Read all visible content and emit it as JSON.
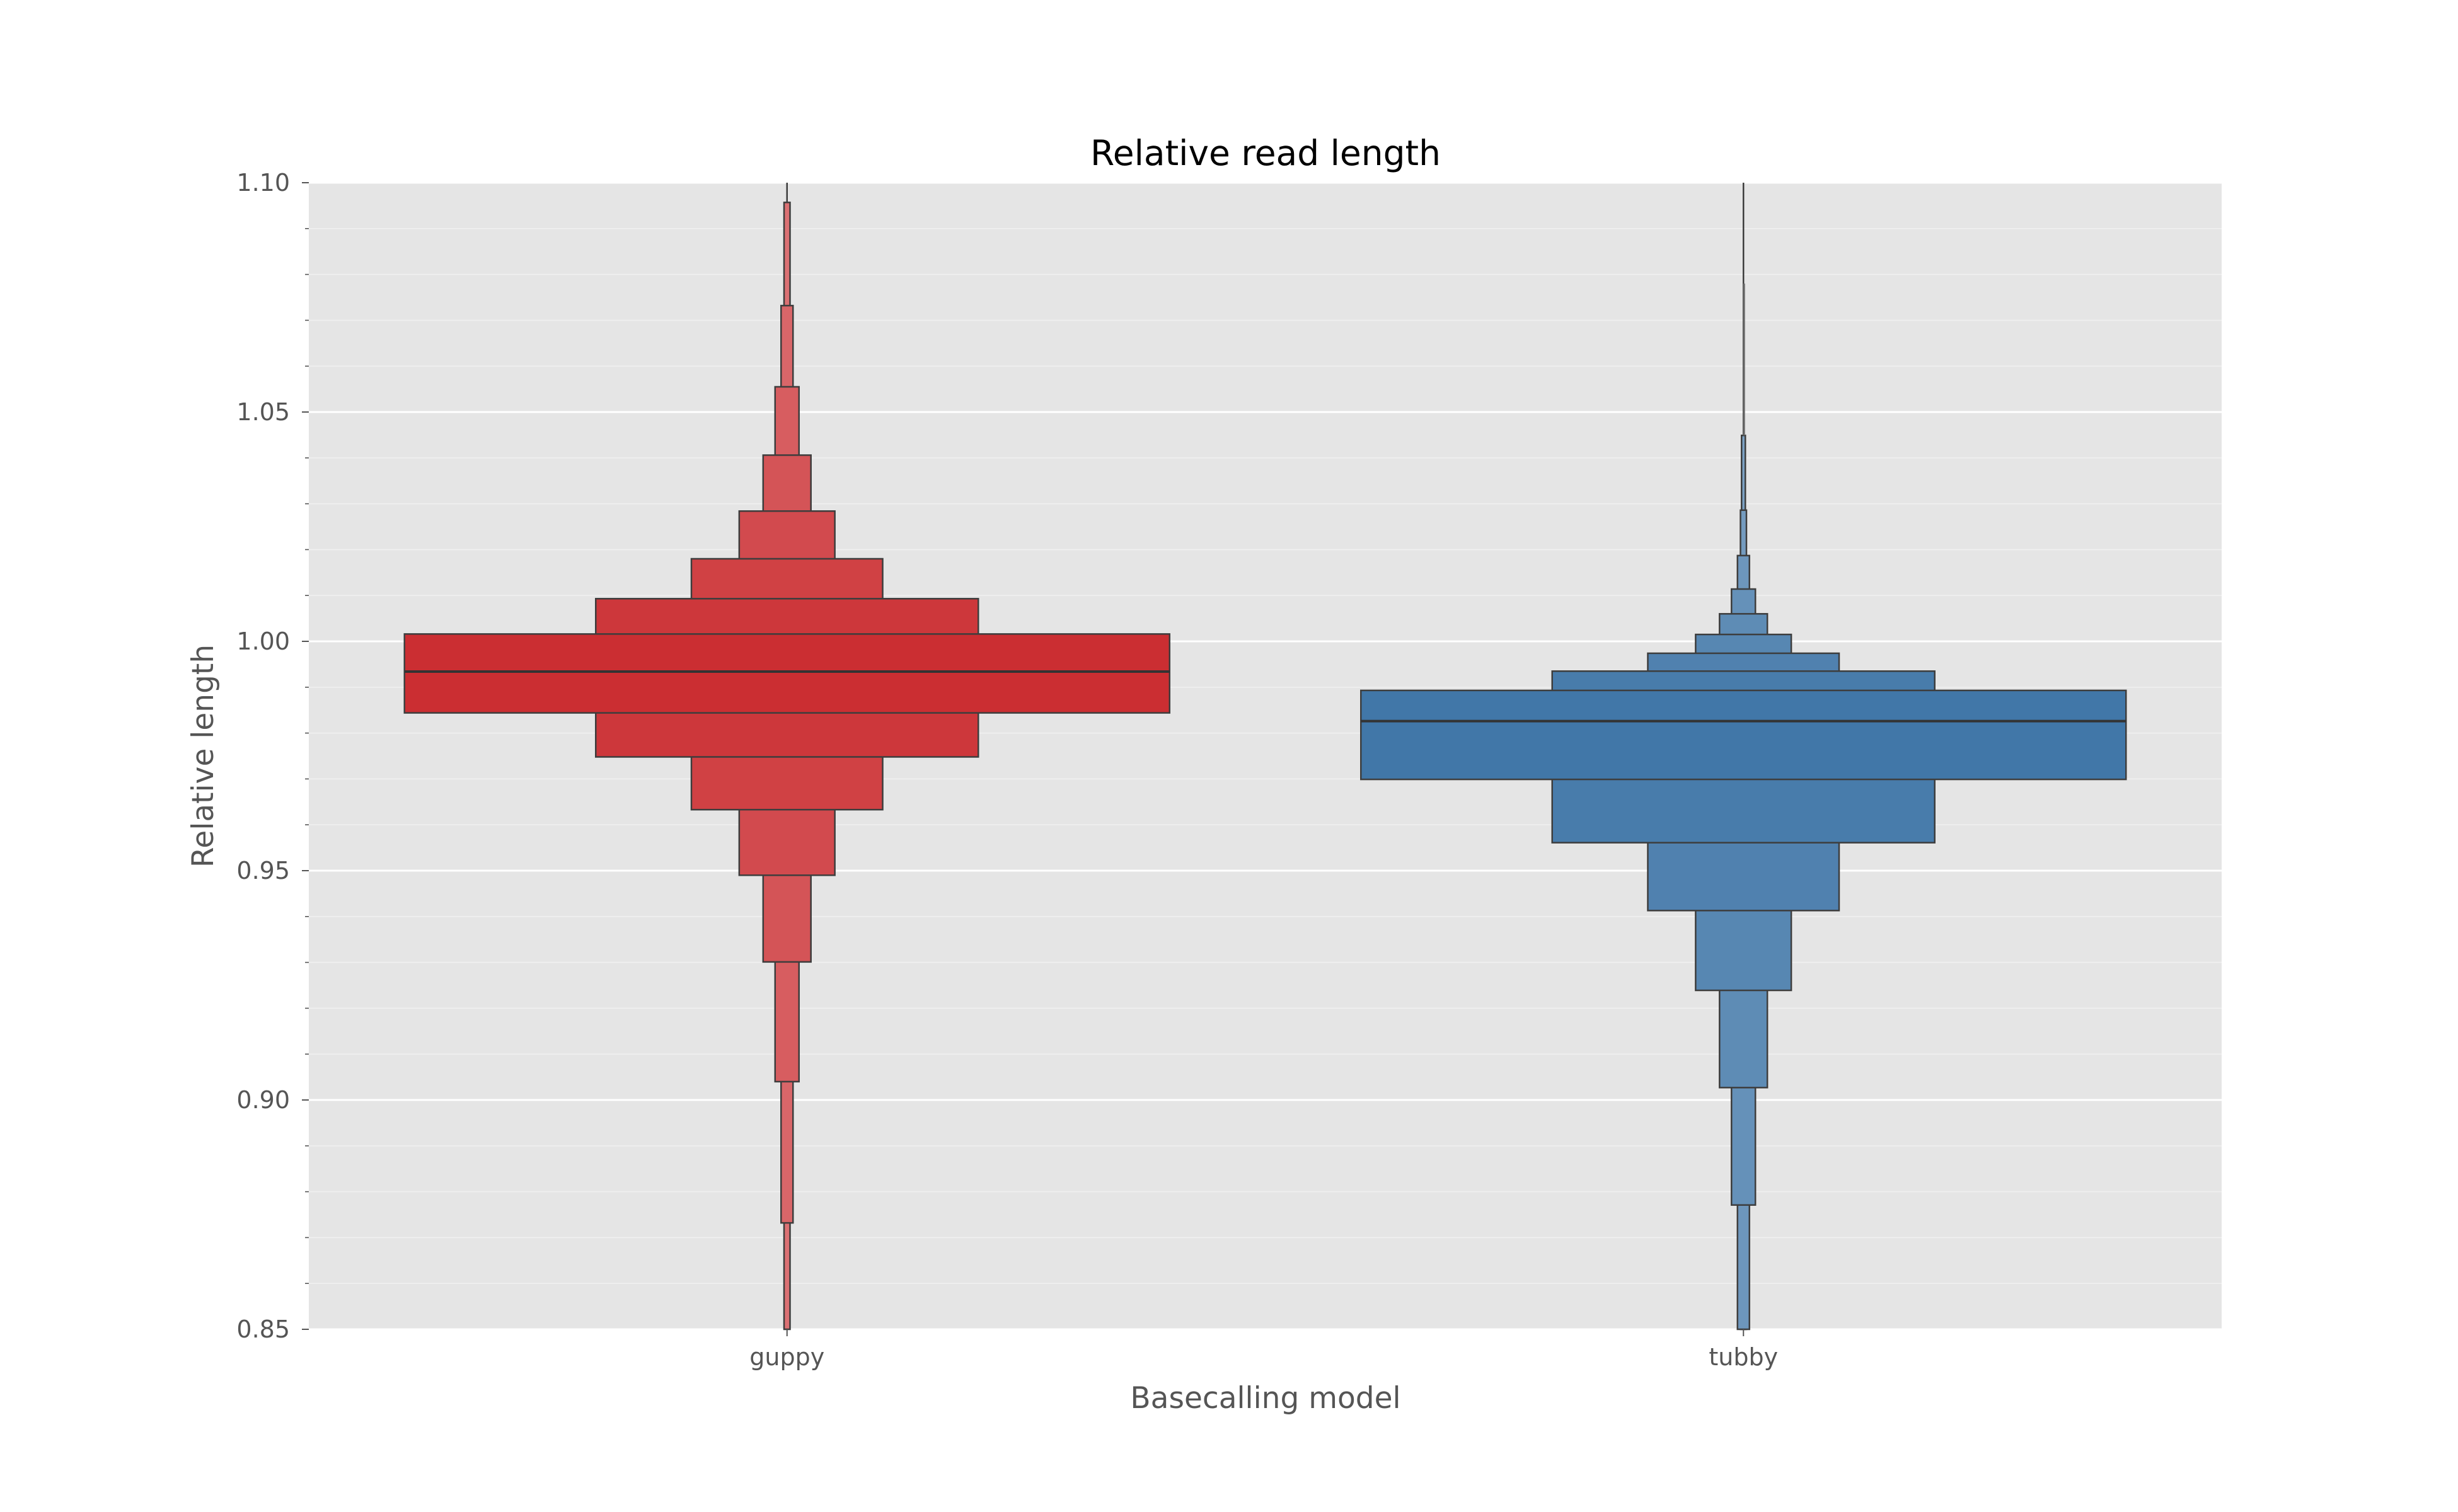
{
  "chart_data": {
    "type": "boxen",
    "title": "Relative read length",
    "xlabel": "Basecalling model",
    "ylabel": "Relative length",
    "ylim": [
      0.85,
      1.1
    ],
    "yticks": [
      "0.85",
      "0.90",
      "0.95",
      "1.00",
      "1.05",
      "1.10"
    ],
    "y_minor_step": 0.01,
    "grid": true,
    "categories": [
      "guppy",
      "tubby"
    ],
    "series": [
      {
        "category": "guppy",
        "color": "#cb2e32",
        "median": 0.9934,
        "boxes": [
          [
            0.9844,
            1.0016
          ],
          [
            0.9748,
            1.0093
          ],
          [
            0.9633,
            1.018
          ],
          [
            0.949,
            1.0284
          ],
          [
            0.9301,
            1.0406
          ],
          [
            0.904,
            1.0555
          ],
          [
            0.8732,
            1.0732
          ],
          [
            0.85,
            1.0957
          ]
        ],
        "whisker_top": 1.1
      },
      {
        "category": "tubby",
        "color": "#4177a8",
        "median": 0.9826,
        "boxes": [
          [
            0.9699,
            0.9893
          ],
          [
            0.9561,
            0.9935
          ],
          [
            0.9413,
            0.9974
          ],
          [
            0.9239,
            1.0015
          ],
          [
            0.9027,
            1.006
          ],
          [
            0.8771,
            1.0114
          ],
          [
            0.85,
            1.0187
          ],
          [
            0.85,
            1.0286
          ],
          [
            0.85,
            1.0449
          ]
        ],
        "whisker_top": 1.1,
        "whisker_top_secondary": 1.078
      }
    ]
  }
}
